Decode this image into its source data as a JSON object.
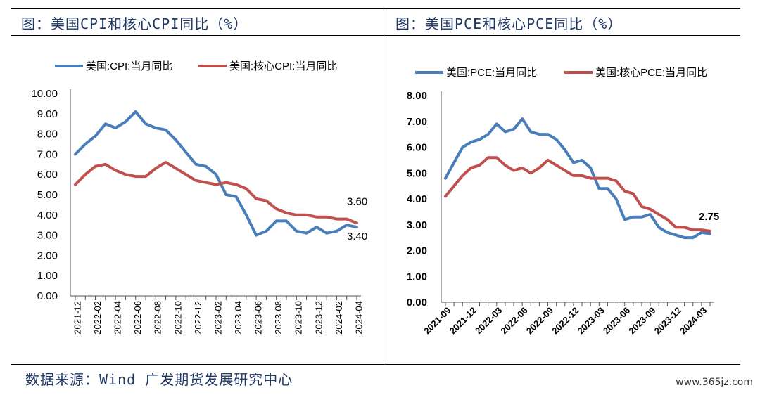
{
  "source": "数据来源：Wind 广发期货发展研究中心",
  "watermark": "www.365jz.com",
  "colors": {
    "headline": "#4a7ebb",
    "core": "#c0504d",
    "title": "#1f3864"
  },
  "chart_data": [
    {
      "type": "line",
      "title": "图：美国CPI和核心CPI同比（%）",
      "x": [
        "2021-12",
        "2022-01",
        "2022-02",
        "2022-03",
        "2022-04",
        "2022-05",
        "2022-06",
        "2022-07",
        "2022-08",
        "2022-09",
        "2022-10",
        "2022-11",
        "2022-12",
        "2023-01",
        "2023-02",
        "2023-03",
        "2023-04",
        "2023-05",
        "2023-06",
        "2023-07",
        "2023-08",
        "2023-09",
        "2023-10",
        "2023-11",
        "2023-12",
        "2024-01",
        "2024-02",
        "2024-03",
        "2024-04"
      ],
      "tick_labels": [
        "2021-12",
        "2022-02",
        "2022-04",
        "2022-06",
        "2022-08",
        "2022-10",
        "2022-12",
        "2023-02",
        "2023-04",
        "2023-06",
        "2023-08",
        "2023-10",
        "2023-12",
        "2024-02",
        "2024-04"
      ],
      "y_tick_labels": [
        "0.00",
        "1.00",
        "2.00",
        "3.00",
        "4.00",
        "5.00",
        "6.00",
        "7.00",
        "8.00",
        "9.00",
        "10.00"
      ],
      "ylim": [
        0,
        10
      ],
      "series": [
        {
          "name": "美国:CPI:当月同比",
          "values": [
            7.0,
            7.5,
            7.9,
            8.5,
            8.3,
            8.6,
            9.1,
            8.5,
            8.3,
            8.2,
            7.7,
            7.1,
            6.5,
            6.4,
            6.0,
            5.0,
            4.9,
            4.0,
            3.0,
            3.2,
            3.7,
            3.7,
            3.2,
            3.1,
            3.4,
            3.1,
            3.2,
            3.5,
            3.4
          ]
        },
        {
          "name": "美国:核心CPI:当月同比",
          "values": [
            5.5,
            6.0,
            6.4,
            6.5,
            6.2,
            6.0,
            5.9,
            5.9,
            6.3,
            6.6,
            6.3,
            6.0,
            5.7,
            5.6,
            5.5,
            5.6,
            5.5,
            5.3,
            4.8,
            4.7,
            4.3,
            4.1,
            4.0,
            4.0,
            3.9,
            3.9,
            3.8,
            3.8,
            3.6
          ]
        }
      ],
      "annotations": [
        "3.60",
        "3.40"
      ]
    },
    {
      "type": "line",
      "title": "图：美国PCE和核心PCE同比（%）",
      "x": [
        "2021-09",
        "2021-10",
        "2021-11",
        "2021-12",
        "2022-01",
        "2022-02",
        "2022-03",
        "2022-04",
        "2022-05",
        "2022-06",
        "2022-07",
        "2022-08",
        "2022-09",
        "2022-10",
        "2022-11",
        "2022-12",
        "2023-01",
        "2023-02",
        "2023-03",
        "2023-04",
        "2023-05",
        "2023-06",
        "2023-07",
        "2023-08",
        "2023-09",
        "2023-10",
        "2023-11",
        "2023-12",
        "2024-01",
        "2024-02",
        "2024-03",
        "2024-04"
      ],
      "tick_labels": [
        "2021-09",
        "2021-12",
        "2022-03",
        "2022-06",
        "2022-09",
        "2022-12",
        "2023-03",
        "2023-06",
        "2023-09",
        "2023-12",
        "2024-03"
      ],
      "y_tick_labels": [
        "0.00",
        "1.00",
        "2.00",
        "3.00",
        "4.00",
        "5.00",
        "6.00",
        "7.00",
        "8.00"
      ],
      "ylim": [
        0,
        8
      ],
      "series": [
        {
          "name": "美国:PCE:当月同比",
          "values": [
            4.8,
            5.4,
            6.0,
            6.2,
            6.3,
            6.5,
            6.9,
            6.6,
            6.7,
            7.1,
            6.6,
            6.5,
            6.5,
            6.3,
            5.9,
            5.4,
            5.5,
            5.2,
            4.4,
            4.4,
            4.0,
            3.2,
            3.3,
            3.3,
            3.4,
            2.9,
            2.7,
            2.6,
            2.5,
            2.5,
            2.7,
            2.65
          ]
        },
        {
          "name": "美国:核心PCE:当月同比",
          "values": [
            4.1,
            4.5,
            4.9,
            5.2,
            5.3,
            5.6,
            5.6,
            5.3,
            5.1,
            5.2,
            5.0,
            5.2,
            5.5,
            5.3,
            5.1,
            4.9,
            4.9,
            4.8,
            4.8,
            4.8,
            4.7,
            4.3,
            4.2,
            3.7,
            3.6,
            3.4,
            3.2,
            2.9,
            2.9,
            2.8,
            2.8,
            2.75
          ]
        }
      ],
      "annotations": [
        "2.75"
      ]
    }
  ]
}
